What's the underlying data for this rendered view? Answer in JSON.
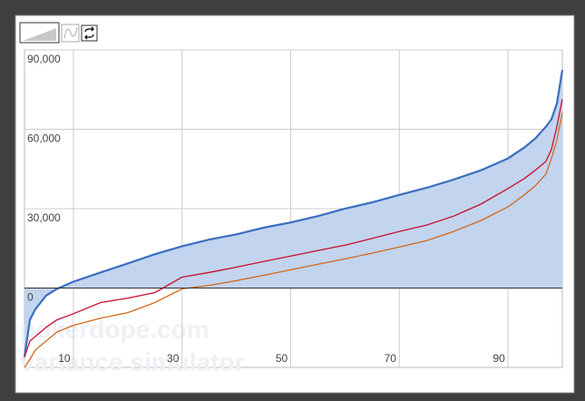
{
  "chart_data": {
    "type": "line",
    "watermark": [
      "pokerdope.com",
      "variance simulator"
    ],
    "x": [
      1,
      2,
      3,
      5,
      7,
      10,
      15,
      20,
      25,
      30,
      35,
      40,
      45,
      50,
      55,
      60,
      65,
      70,
      75,
      80,
      85,
      90,
      93,
      95,
      97,
      98,
      99,
      100
    ],
    "series": [
      {
        "color": "#3a6fc1",
        "fill": "#c2d4ee",
        "area": true,
        "values": [
          -26000,
          -12000,
          -8000,
          -2800,
          -300,
          2400,
          5900,
          9300,
          12800,
          15800,
          18300,
          20300,
          22800,
          24800,
          27200,
          30000,
          32400,
          35200,
          37900,
          41000,
          44500,
          49000,
          53100,
          56500,
          61000,
          63800,
          69700,
          82400
        ]
      },
      {
        "color": "#c8102e",
        "area": false,
        "values": [
          -26000,
          -20000,
          -18300,
          -14800,
          -12000,
          -9700,
          -5500,
          -3800,
          -1700,
          4100,
          5900,
          7900,
          10000,
          12100,
          14200,
          16200,
          18800,
          21400,
          23800,
          27200,
          31700,
          37600,
          41400,
          44500,
          47900,
          52400,
          61000,
          71400
        ]
      },
      {
        "color": "#d2691e",
        "area": false,
        "values": [
          -30000,
          -26900,
          -23400,
          -20000,
          -16600,
          -14100,
          -11400,
          -9300,
          -5500,
          -300,
          1000,
          2800,
          4800,
          6900,
          9000,
          11000,
          13200,
          15500,
          17900,
          21400,
          25500,
          30700,
          35200,
          38600,
          43100,
          49000,
          55900,
          66200
        ]
      }
    ],
    "xlim": [
      1,
      100
    ],
    "xticks": [
      10,
      30,
      50,
      70,
      90
    ],
    "ylim": [
      -30000,
      90000
    ],
    "yticks": [
      {
        "value": 0,
        "label": "0"
      },
      {
        "value": 30000,
        "label": "30,000"
      },
      {
        "value": 60000,
        "label": "60,000"
      },
      {
        "value": 90000,
        "label": "90,000"
      }
    ],
    "grid": true
  }
}
